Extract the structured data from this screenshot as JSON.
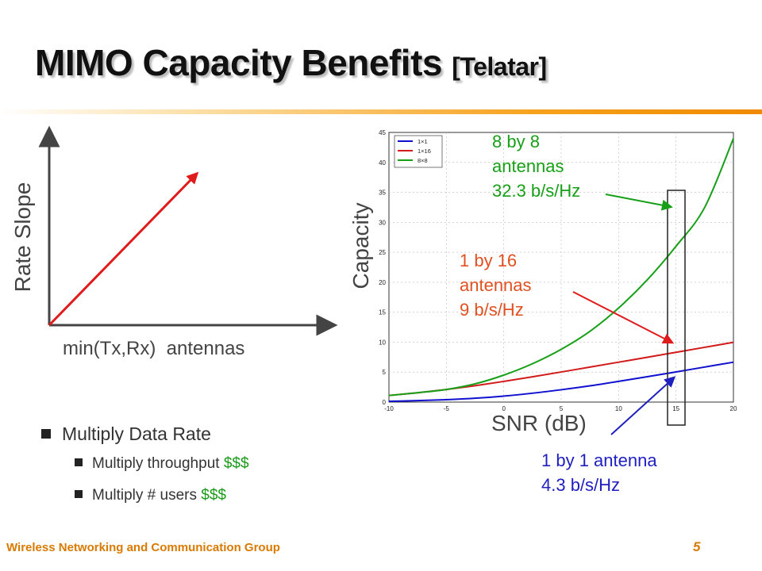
{
  "slide": {
    "title": "MIMO Capacity Benefits",
    "title_ref": "[Telatar]",
    "footer": "Wireless Networking and Communication Group",
    "page_number": "5"
  },
  "concept_plot": {
    "ylabel": "Rate Slope",
    "xlabel_part1": "min(Tx,Rx)",
    "xlabel_part2": "antennas"
  },
  "bullets": {
    "main": "Multiply Data Rate",
    "sub1_text": "Multiply throughput ",
    "sub1_money": "$$$",
    "sub2_text": "Multiply # users ",
    "sub2_money": "$$$"
  },
  "annotations": {
    "a8_line1": "8 by 8",
    "a8_line2": "antennas",
    "a8_line3": "32.3 b/s/Hz",
    "a16_line1": "1 by 16",
    "a16_line2": "antennas",
    "a16_line3": "9 b/s/Hz",
    "a1_line1": "1 by 1 antenna",
    "a1_line2": "4.3 b/s/Hz"
  },
  "chart_data": {
    "type": "line",
    "xlabel": "SNR (dB)",
    "ylabel": "Capacity",
    "xlim": [
      -10,
      20
    ],
    "ylim": [
      0,
      45
    ],
    "xticks": [
      -10,
      -5,
      0,
      5,
      10,
      15,
      20
    ],
    "yticks": [
      0,
      5,
      10,
      15,
      20,
      25,
      30,
      35,
      40,
      45
    ],
    "grid": true,
    "legend_position": "top-left",
    "x": [
      -10,
      -7.5,
      -5,
      -2.5,
      0,
      2.5,
      5,
      7.5,
      10,
      12.5,
      15,
      17.5,
      20
    ],
    "series": [
      {
        "name": "1×1",
        "color": "#1010d0",
        "values": [
          0.14,
          0.24,
          0.4,
          0.64,
          1.0,
          1.48,
          2.06,
          2.71,
          3.46,
          4.23,
          5.03,
          5.85,
          6.66
        ]
      },
      {
        "name": "1×16",
        "color": "#d21a1a",
        "values": [
          1.1,
          1.56,
          2.1,
          2.73,
          3.45,
          4.22,
          5.02,
          5.84,
          6.66,
          7.48,
          8.31,
          9.14,
          9.97
        ]
      },
      {
        "name": "8×8",
        "color": "#17a017",
        "values": [
          1.1,
          1.56,
          2.1,
          3.04,
          4.5,
          6.4,
          8.8,
          11.8,
          15.7,
          20.4,
          26.0,
          32.5,
          44.0
        ]
      }
    ]
  }
}
